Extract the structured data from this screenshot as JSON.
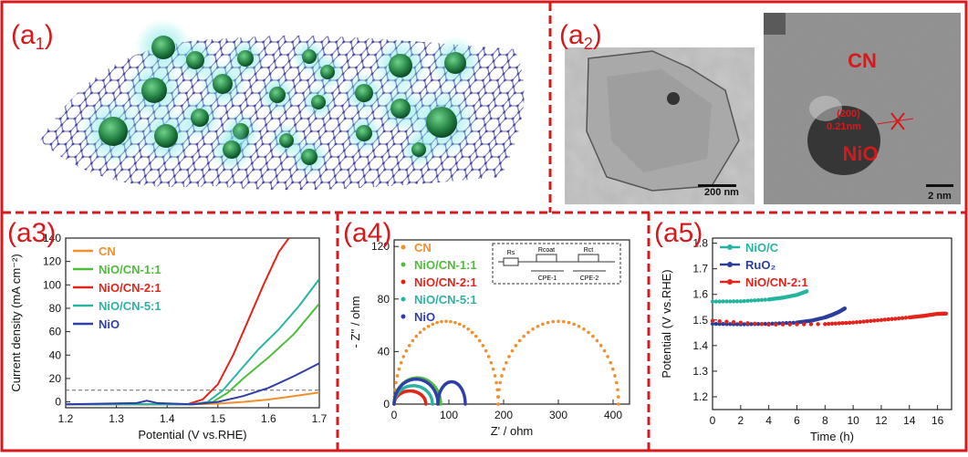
{
  "panel_labels": [
    "(a1)",
    "(a2)",
    "(a3)",
    "(a4)",
    "(a5)"
  ],
  "tem": {
    "scale_left": "200 nm",
    "scale_right": "2 nm",
    "label_cn": "CN",
    "label_nio": "NiO",
    "plane": "(200)",
    "spacing": "0.21nm"
  },
  "colors": {
    "border_red": "#d7191c",
    "CN": "#f28e2b",
    "NiO/CN-1:1": "#4dbd3a",
    "NiO/CN-2:1": "#e2241a",
    "NiO/CN-5:1": "#2ab3a3",
    "NiO": "#2f3fa8",
    "NiO/C": "#25b59f",
    "RuO2": "#2c3e9c"
  },
  "chart_data": [
    {
      "type": "line",
      "panel": "(a3)",
      "xlabel": "Potential (V vs.RHE)",
      "ylabel": "Current density (mA cm⁻²)",
      "xlim": [
        1.2,
        1.7
      ],
      "ylim": [
        -5,
        140
      ],
      "xticks": [
        "1.2",
        "1.3",
        "1.4",
        "1.5",
        "1.6",
        "1.7"
      ],
      "yticks": [
        "0",
        "20",
        "40",
        "60",
        "80",
        "100",
        "120",
        "140"
      ],
      "reference_line": 10,
      "legend": "top-left",
      "series": [
        {
          "name": "CN",
          "x": [
            1.2,
            1.45,
            1.5,
            1.55,
            1.6,
            1.65,
            1.7
          ],
          "y": [
            -2,
            -2,
            -1.5,
            0,
            2,
            5,
            8
          ]
        },
        {
          "name": "NiO/CN-1:1",
          "x": [
            1.2,
            1.45,
            1.49,
            1.52,
            1.55,
            1.6,
            1.65,
            1.7
          ],
          "y": [
            -2,
            -2,
            0,
            8,
            20,
            38,
            58,
            84
          ]
        },
        {
          "name": "NiO/CN-2:1",
          "x": [
            1.2,
            1.44,
            1.47,
            1.5,
            1.53,
            1.56,
            1.59,
            1.62,
            1.64
          ],
          "y": [
            -2,
            -2,
            2,
            15,
            40,
            70,
            100,
            128,
            140
          ]
        },
        {
          "name": "NiO/CN-5:1",
          "x": [
            1.2,
            1.45,
            1.48,
            1.51,
            1.54,
            1.58,
            1.62,
            1.66,
            1.7
          ],
          "y": [
            -2,
            -2,
            0,
            10,
            25,
            45,
            62,
            82,
            105
          ]
        },
        {
          "name": "NiO",
          "x": [
            1.2,
            1.34,
            1.36,
            1.38,
            1.45,
            1.5,
            1.55,
            1.6,
            1.65,
            1.7
          ],
          "y": [
            -2,
            -1,
            1,
            -1,
            -2,
            0,
            5,
            12,
            22,
            33
          ]
        }
      ]
    },
    {
      "type": "scatter",
      "panel": "(a4)",
      "xlabel": "Z' / ohm",
      "ylabel": "- Z'' / ohm",
      "xlim": [
        0,
        430
      ],
      "ylim": [
        0,
        125
      ],
      "xticks": [
        "0",
        "100",
        "200",
        "300",
        "400"
      ],
      "yticks": [
        "0",
        "40",
        "80",
        "120"
      ],
      "legend": "top-left",
      "circuit": {
        "labels": [
          "Rs",
          "Rcoat",
          "Rct",
          "CPE-1",
          "CPE-2"
        ]
      },
      "series": [
        {
          "name": "CN",
          "arcs": [
            [
              0,
              190,
              63
            ],
            [
              190,
              410,
              63
            ]
          ]
        },
        {
          "name": "NiO/CN-1:1",
          "arcs": [
            [
              0,
              85,
              20
            ]
          ]
        },
        {
          "name": "NiO/CN-2:1",
          "arcs": [
            [
              0,
              58,
              10
            ]
          ]
        },
        {
          "name": "NiO/CN-5:1",
          "arcs": [
            [
              0,
              70,
              14
            ]
          ]
        },
        {
          "name": "NiO",
          "arcs": [
            [
              0,
              80,
              19
            ],
            [
              80,
              130,
              17
            ]
          ]
        }
      ]
    },
    {
      "type": "scatter",
      "panel": "(a5)",
      "xlabel": "Time (h)",
      "ylabel": "Potential (V vs.RHE)",
      "xlim": [
        0,
        17
      ],
      "ylim": [
        1.15,
        1.82
      ],
      "xticks": [
        "0",
        "2",
        "4",
        "6",
        "8",
        "10",
        "12",
        "14",
        "16"
      ],
      "yticks": [
        "1.2",
        "1.3",
        "1.4",
        "1.5",
        "1.6",
        "1.7",
        "1.8"
      ],
      "legend": "top-left",
      "series": [
        {
          "name": "NiO/C",
          "x": [
            0,
            2,
            4,
            5,
            6,
            6.7
          ],
          "y": [
            1.572,
            1.573,
            1.58,
            1.587,
            1.598,
            1.612
          ]
        },
        {
          "name": "RuO₂",
          "x": [
            0,
            2,
            4,
            6,
            7,
            8,
            8.5,
            9,
            9.4
          ],
          "y": [
            1.485,
            1.483,
            1.485,
            1.49,
            1.497,
            1.51,
            1.52,
            1.532,
            1.545
          ]
        },
        {
          "name": "NiO/CN-2:1",
          "x": [
            0,
            4,
            8,
            10,
            12,
            14,
            15,
            16,
            16.6
          ],
          "y": [
            1.497,
            1.482,
            1.484,
            1.49,
            1.5,
            1.51,
            1.516,
            1.524,
            1.525
          ]
        }
      ]
    }
  ]
}
